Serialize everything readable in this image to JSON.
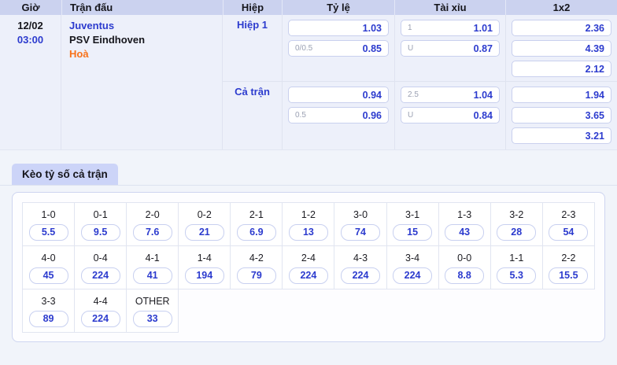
{
  "colors": {
    "accent_blue": "#2c3bce",
    "draw_orange": "#f87118",
    "header_bg": "#cbd2ef",
    "body_bg": "#edf0fa",
    "tab_bg": "#ccd4f8"
  },
  "odds_table": {
    "headers": {
      "time": "Giờ",
      "match": "Trận đấu",
      "half": "Hiệp",
      "rate": "Tỷ lệ",
      "over_under": "Tài xỉu",
      "one_x_two": "1x2"
    },
    "match": {
      "date": "12/02",
      "time": "03:00",
      "home": "Juventus",
      "away": "PSV Eindhoven",
      "draw": "Hoà"
    },
    "groups": [
      {
        "label": "Hiệp 1",
        "rate": [
          {
            "label": "",
            "value": "1.03"
          },
          {
            "label": "0/0.5",
            "value": "0.85"
          }
        ],
        "over_under": [
          {
            "label": "1",
            "value": "1.01"
          },
          {
            "label": "U",
            "value": "0.87"
          }
        ],
        "one_x_two": [
          "2.36",
          "4.39",
          "2.12"
        ]
      },
      {
        "label": "Cả trận",
        "rate": [
          {
            "label": "",
            "value": "0.94"
          },
          {
            "label": "0.5",
            "value": "0.96"
          }
        ],
        "over_under": [
          {
            "label": "2.5",
            "value": "1.04"
          },
          {
            "label": "U",
            "value": "0.84"
          }
        ],
        "one_x_two": [
          "1.94",
          "3.65",
          "3.21"
        ]
      }
    ]
  },
  "score_section": {
    "tab_label": "Kèo tỷ số cả trận",
    "columns": 11,
    "rows": [
      [
        {
          "score": "1-0",
          "odds": "5.5"
        },
        {
          "score": "0-1",
          "odds": "9.5"
        },
        {
          "score": "2-0",
          "odds": "7.6"
        },
        {
          "score": "0-2",
          "odds": "21"
        },
        {
          "score": "2-1",
          "odds": "6.9"
        },
        {
          "score": "1-2",
          "odds": "13"
        },
        {
          "score": "3-0",
          "odds": "74"
        },
        {
          "score": "3-1",
          "odds": "15"
        },
        {
          "score": "1-3",
          "odds": "43"
        },
        {
          "score": "3-2",
          "odds": "28"
        },
        {
          "score": "2-3",
          "odds": "54"
        }
      ],
      [
        {
          "score": "4-0",
          "odds": "45"
        },
        {
          "score": "0-4",
          "odds": "224"
        },
        {
          "score": "4-1",
          "odds": "41"
        },
        {
          "score": "1-4",
          "odds": "194"
        },
        {
          "score": "4-2",
          "odds": "79"
        },
        {
          "score": "2-4",
          "odds": "224"
        },
        {
          "score": "4-3",
          "odds": "224"
        },
        {
          "score": "3-4",
          "odds": "224"
        },
        {
          "score": "0-0",
          "odds": "8.8"
        },
        {
          "score": "1-1",
          "odds": "5.3"
        },
        {
          "score": "2-2",
          "odds": "15.5"
        }
      ],
      [
        {
          "score": "3-3",
          "odds": "89"
        },
        {
          "score": "4-4",
          "odds": "224"
        },
        {
          "score": "OTHER",
          "odds": "33"
        }
      ]
    ]
  }
}
